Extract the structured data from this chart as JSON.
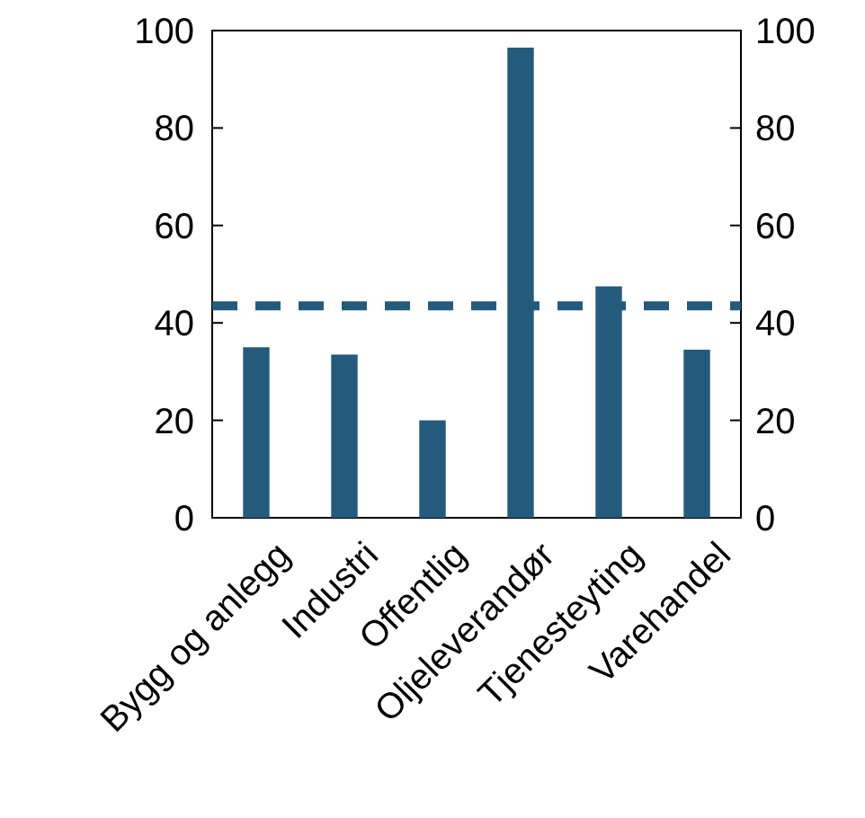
{
  "chart_data": {
    "type": "bar",
    "categories": [
      "Bygg og anlegg",
      "Industri",
      "Offentlig",
      "Oljeleverandør",
      "Tjenesteyting",
      "Varehandel"
    ],
    "values": [
      35,
      33.5,
      20,
      96.5,
      47.5,
      34.5
    ],
    "color": "#245b7d",
    "ylim": [
      0,
      100
    ],
    "yticks": [
      0,
      20,
      40,
      60,
      80,
      100
    ],
    "y2lim": [
      0,
      100
    ],
    "y2ticks": [
      0,
      20,
      40,
      60,
      80,
      100
    ],
    "ref_lines": [
      {
        "axis": "y",
        "value": 43.5,
        "color": "#245b7d",
        "line_style": "dashed"
      }
    ]
  }
}
